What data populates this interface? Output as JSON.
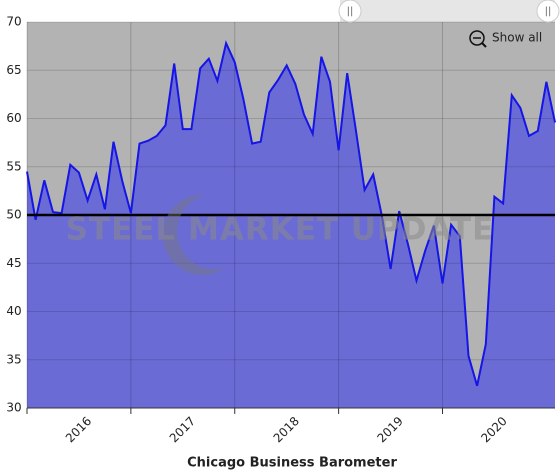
{
  "chart_data": {
    "type": "area",
    "title": "Chicago Business Barometer",
    "watermark": "STEEL MARKET UPDATE",
    "button": "Show all",
    "x": [
      2016,
      2016.083,
      2016.167,
      2016.25,
      2016.333,
      2016.417,
      2016.5,
      2016.583,
      2016.667,
      2016.75,
      2016.833,
      2016.917,
      2017,
      2017.083,
      2017.167,
      2017.25,
      2017.333,
      2017.417,
      2017.5,
      2017.583,
      2017.667,
      2017.75,
      2017.833,
      2017.917,
      2018,
      2018.083,
      2018.167,
      2018.25,
      2018.333,
      2018.417,
      2018.5,
      2018.583,
      2018.667,
      2018.75,
      2018.833,
      2018.917,
      2019,
      2019.083,
      2019.167,
      2019.25,
      2019.333,
      2019.417,
      2019.5,
      2019.583,
      2019.667,
      2019.75,
      2019.833,
      2019.917,
      2020,
      2020.083,
      2020.167,
      2020.25,
      2020.333,
      2020.417,
      2020.5,
      2020.583,
      2020.667,
      2020.75,
      2020.833,
      2020.917,
      2021,
      2021.083
    ],
    "series": [
      {
        "name": "Chicago Business Barometer",
        "color": "#1515e6",
        "fill": "#6b6bd6",
        "values": [
          54.5,
          49.5,
          53.6,
          50.3,
          50.2,
          55.2,
          54.4,
          51.5,
          54.2,
          50.6,
          57.6,
          53.5,
          50.2,
          57.4,
          57.7,
          58.2,
          59.3,
          65.7,
          58.9,
          58.9,
          65.2,
          66.2,
          63.9,
          67.8,
          65.8,
          62.0,
          57.4,
          57.6,
          62.7,
          64.0,
          65.5,
          63.6,
          60.4,
          58.4,
          66.4,
          63.8,
          56.7,
          64.7,
          58.7,
          52.6,
          54.2,
          49.9,
          44.4,
          50.4,
          47.0,
          43.2,
          46.3,
          48.9,
          42.9,
          49.0,
          47.8,
          35.4,
          32.3,
          36.6,
          51.9,
          51.2,
          62.4,
          61.1,
          58.2,
          58.7,
          63.8,
          59.6
        ]
      }
    ],
    "reference_line": 50,
    "xlim": [
      2016,
      2021.083
    ],
    "xticks": [
      2016,
      2017,
      2018,
      2019,
      2020
    ],
    "ylim": [
      30,
      70
    ],
    "yticks": [
      30,
      35,
      40,
      45,
      50,
      55,
      60,
      65,
      70
    ],
    "grid": true,
    "background": "#b3b3b3"
  }
}
